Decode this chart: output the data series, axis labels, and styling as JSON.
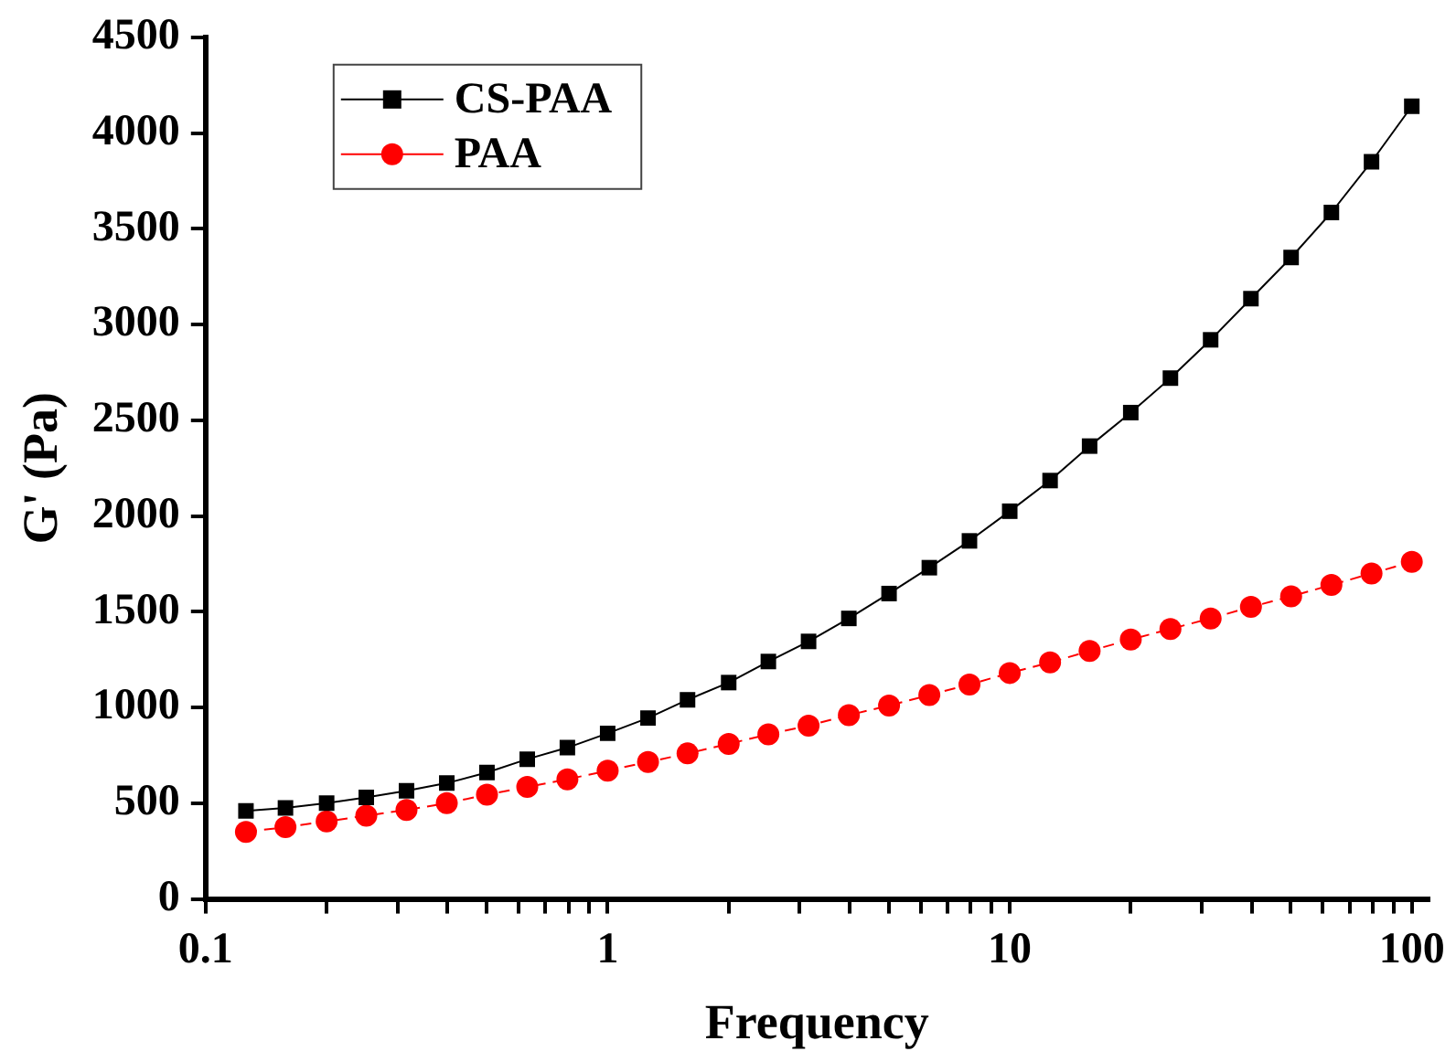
{
  "chart_data": {
    "type": "line",
    "xlabel": "Frequency",
    "ylabel": "G' (Pa)",
    "log": "x",
    "xlim": [
      0.1,
      110
    ],
    "xticks": [
      0.1,
      {
        "value": 0.2,
        "label": null
      },
      {
        "value": 0.3,
        "label": null
      },
      {
        "value": 0.4,
        "label": null
      },
      {
        "value": 0.5,
        "label": null
      },
      {
        "value": 0.6,
        "label": null
      },
      {
        "value": 0.7,
        "label": null
      },
      {
        "value": 0.8,
        "label": null
      },
      {
        "value": 0.9,
        "label": null
      },
      1,
      {
        "value": 2,
        "label": null
      },
      {
        "value": 3,
        "label": null
      },
      {
        "value": 4,
        "label": null
      },
      {
        "value": 5,
        "label": null
      },
      {
        "value": 6,
        "label": null
      },
      {
        "value": 7,
        "label": null
      },
      {
        "value": 8,
        "label": null
      },
      {
        "value": 9,
        "label": null
      },
      10,
      {
        "value": 20,
        "label": null
      },
      {
        "value": 30,
        "label": null
      },
      {
        "value": 40,
        "label": null
      },
      {
        "value": 50,
        "label": null
      },
      {
        "value": 60,
        "label": null
      },
      {
        "value": 70,
        "label": null
      },
      {
        "value": 80,
        "label": null
      },
      {
        "value": 90,
        "label": null
      },
      100
    ],
    "ylim": [
      0,
      4500
    ],
    "yticks": [
      0,
      500,
      1000,
      1500,
      2000,
      2500,
      3000,
      3500,
      4000,
      4500
    ],
    "grid": false,
    "legend": "top left",
    "x": [
      0.126,
      0.158,
      0.2,
      0.251,
      0.316,
      0.398,
      0.501,
      0.631,
      0.794,
      1,
      1.26,
      1.58,
      2,
      2.51,
      3.16,
      3.98,
      5.01,
      6.31,
      7.94,
      10,
      12.6,
      15.8,
      20,
      25.1,
      31.6,
      39.8,
      50.1,
      63.1,
      79.4,
      100
    ],
    "series": [
      {
        "name": "CS-PAA",
        "color": "#000000",
        "marker": "square",
        "line_style": "solid",
        "values": [
          460,
          475,
          500,
          530,
          565,
          605,
          660,
          730,
          790,
          865,
          945,
          1040,
          1130,
          1240,
          1345,
          1465,
          1595,
          1730,
          1870,
          2025,
          2185,
          2365,
          2540,
          2720,
          2920,
          3135,
          3350,
          3585,
          3850,
          4140
        ]
      },
      {
        "name": "PAA",
        "color": "#ff0000",
        "marker": "circle",
        "line_style": "dashed",
        "values": [
          350,
          375,
          405,
          435,
          465,
          500,
          545,
          585,
          625,
          670,
          715,
          760,
          810,
          860,
          905,
          960,
          1010,
          1065,
          1120,
          1180,
          1235,
          1295,
          1355,
          1410,
          1465,
          1525,
          1580,
          1640,
          1700,
          1760
        ]
      }
    ]
  }
}
